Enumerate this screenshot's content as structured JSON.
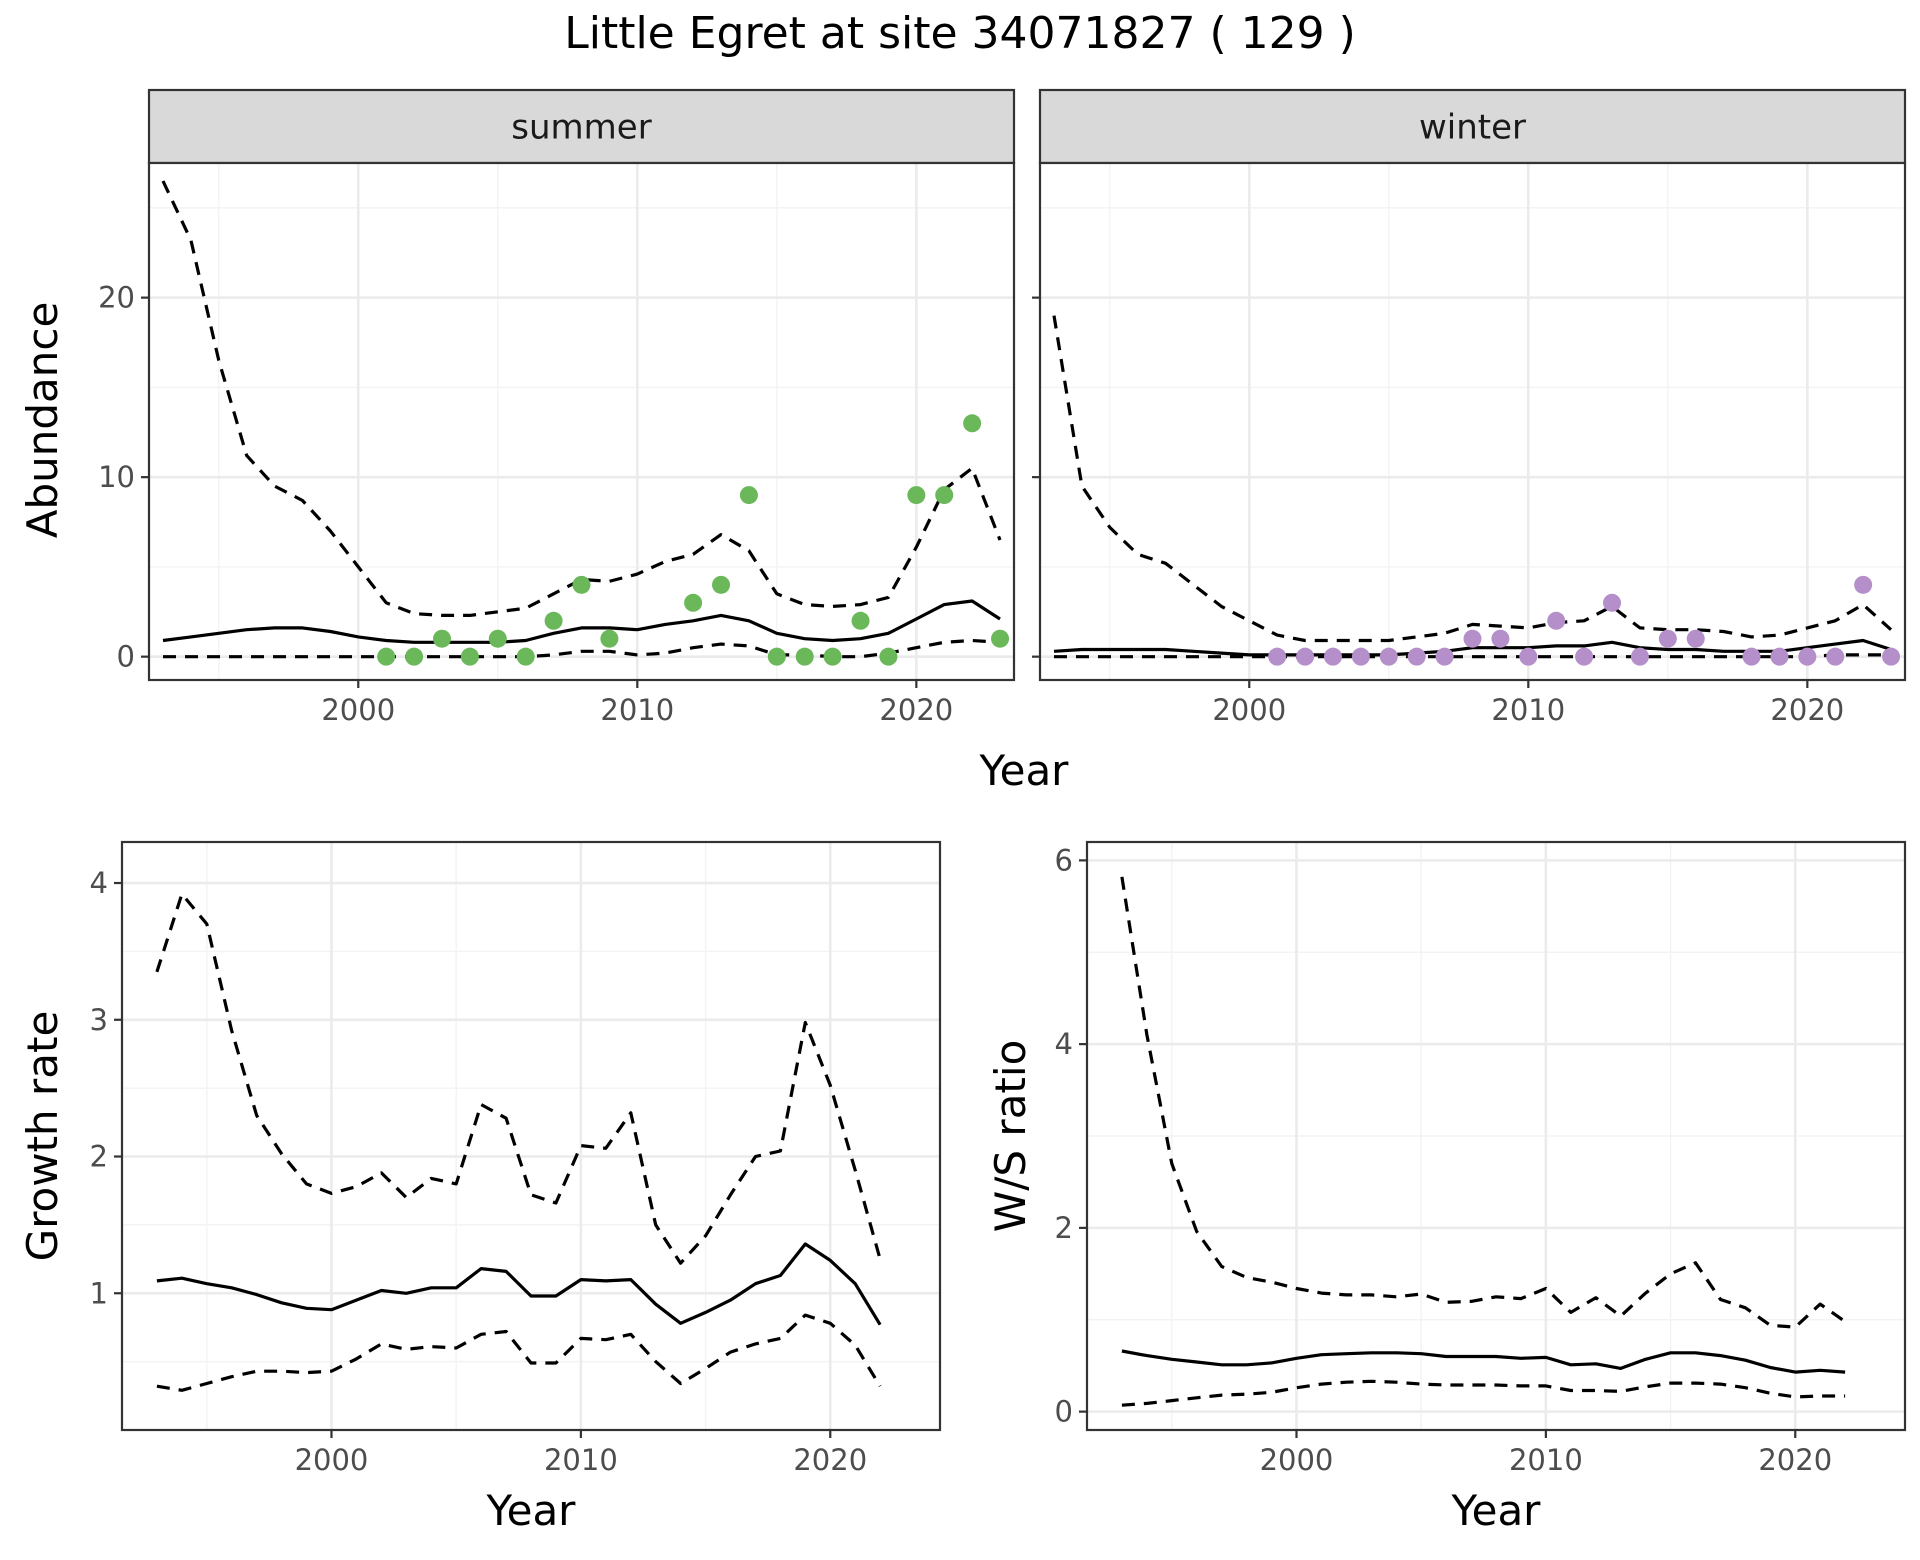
{
  "title": "Little Egret at site 34071827 ( 129 )",
  "colors": {
    "summer_points": "#6ab85a",
    "winter_points": "#b58fc9",
    "lines": "#000000",
    "strip_fill": "#d9d9d9"
  },
  "chart_data": [
    {
      "type": "line",
      "facet": "summer",
      "xlabel": "Year",
      "ylabel": "Abundance",
      "xlim": [
        1992.5,
        2023.5
      ],
      "ylim": [
        -1.3,
        27.5
      ],
      "x_ticks": [
        2000,
        2010,
        2020
      ],
      "y_ticks": [
        0,
        10,
        20
      ],
      "grid": true,
      "legend": "none",
      "series": [
        {
          "role": "estimate",
          "style": "solid",
          "x": [
            1993,
            1994,
            1995,
            1996,
            1997,
            1998,
            1999,
            2000,
            2001,
            2002,
            2003,
            2004,
            2005,
            2006,
            2007,
            2008,
            2009,
            2010,
            2011,
            2012,
            2013,
            2014,
            2015,
            2016,
            2017,
            2018,
            2019,
            2020,
            2021,
            2022,
            2023
          ],
          "y": [
            0.9,
            1.1,
            1.3,
            1.5,
            1.6,
            1.6,
            1.4,
            1.1,
            0.9,
            0.8,
            0.8,
            0.8,
            0.8,
            0.9,
            1.3,
            1.6,
            1.6,
            1.5,
            1.8,
            2.0,
            2.3,
            2.0,
            1.3,
            1.0,
            0.9,
            1.0,
            1.3,
            2.1,
            2.9,
            3.1,
            2.1
          ]
        },
        {
          "role": "upper",
          "style": "dashed",
          "x": [
            1993,
            1994,
            1995,
            1996,
            1997,
            1998,
            1999,
            2000,
            2001,
            2002,
            2003,
            2004,
            2005,
            2006,
            2007,
            2008,
            2009,
            2010,
            2011,
            2012,
            2013,
            2014,
            2015,
            2016,
            2017,
            2018,
            2019,
            2020,
            2021,
            2022,
            2023
          ],
          "y": [
            26.5,
            23.2,
            16.5,
            11.2,
            9.5,
            8.7,
            7.0,
            5.0,
            3.0,
            2.4,
            2.3,
            2.3,
            2.5,
            2.7,
            3.5,
            4.3,
            4.2,
            4.6,
            5.3,
            5.7,
            6.8,
            5.9,
            3.5,
            2.9,
            2.8,
            2.9,
            3.3,
            6.1,
            9.3,
            10.5,
            6.5
          ]
        },
        {
          "role": "lower",
          "style": "dashed",
          "x": [
            1993,
            1994,
            1995,
            1996,
            1997,
            1998,
            1999,
            2000,
            2001,
            2002,
            2003,
            2004,
            2005,
            2006,
            2007,
            2008,
            2009,
            2010,
            2011,
            2012,
            2013,
            2014,
            2015,
            2016,
            2017,
            2018,
            2019,
            2020,
            2021,
            2022,
            2023
          ],
          "y": [
            0.0,
            0.0,
            0.0,
            0.0,
            0.0,
            0.0,
            0.0,
            0.0,
            0.0,
            0.0,
            0.0,
            0.0,
            0.0,
            0.0,
            0.1,
            0.3,
            0.3,
            0.1,
            0.2,
            0.5,
            0.7,
            0.6,
            0.1,
            0.1,
            0.0,
            0.0,
            0.2,
            0.5,
            0.8,
            0.9,
            0.8
          ]
        },
        {
          "role": "observed",
          "style": "points",
          "x": [
            2001,
            2002,
            2003,
            2004,
            2005,
            2006,
            2007,
            2008,
            2009,
            2012,
            2013,
            2014,
            2015,
            2016,
            2017,
            2018,
            2019,
            2020,
            2021,
            2022,
            2023
          ],
          "y": [
            0,
            0,
            1,
            0,
            1,
            0,
            2,
            4,
            1,
            3,
            4,
            9,
            0,
            0,
            0,
            2,
            0,
            9,
            9,
            13,
            1
          ]
        }
      ]
    },
    {
      "type": "line",
      "facet": "winter",
      "xlabel": "Year",
      "ylabel": "Abundance",
      "xlim": [
        1992.5,
        2023.5
      ],
      "ylim": [
        -1.3,
        27.5
      ],
      "x_ticks": [
        2000,
        2010,
        2020
      ],
      "y_ticks": [
        0,
        10,
        20
      ],
      "grid": true,
      "legend": "none",
      "series": [
        {
          "role": "estimate",
          "style": "solid",
          "x": [
            1993,
            1994,
            1995,
            1996,
            1997,
            1998,
            1999,
            2000,
            2001,
            2002,
            2003,
            2004,
            2005,
            2006,
            2007,
            2008,
            2009,
            2010,
            2011,
            2012,
            2013,
            2014,
            2015,
            2016,
            2017,
            2018,
            2019,
            2020,
            2021,
            2022,
            2023
          ],
          "y": [
            0.3,
            0.4,
            0.4,
            0.4,
            0.4,
            0.3,
            0.2,
            0.1,
            0.1,
            0.1,
            0.1,
            0.1,
            0.1,
            0.2,
            0.3,
            0.5,
            0.5,
            0.5,
            0.6,
            0.6,
            0.8,
            0.5,
            0.4,
            0.4,
            0.3,
            0.3,
            0.3,
            0.5,
            0.7,
            0.9,
            0.4
          ]
        },
        {
          "role": "upper",
          "style": "dashed",
          "x": [
            1993,
            1994,
            1995,
            1996,
            1997,
            1998,
            1999,
            2000,
            2001,
            2002,
            2003,
            2004,
            2005,
            2006,
            2007,
            2008,
            2009,
            2010,
            2011,
            2012,
            2013,
            2014,
            2015,
            2016,
            2017,
            2018,
            2019,
            2020,
            2021,
            2022,
            2023
          ],
          "y": [
            19.0,
            9.5,
            7.2,
            5.7,
            5.2,
            4.0,
            2.8,
            2.0,
            1.2,
            0.9,
            0.9,
            0.9,
            0.9,
            1.1,
            1.3,
            1.8,
            1.7,
            1.6,
            1.9,
            2.0,
            2.8,
            1.6,
            1.5,
            1.5,
            1.4,
            1.1,
            1.2,
            1.6,
            2.0,
            2.9,
            1.5
          ]
        },
        {
          "role": "lower",
          "style": "dashed",
          "x": [
            1993,
            1994,
            1995,
            1996,
            1997,
            1998,
            1999,
            2000,
            2001,
            2002,
            2003,
            2004,
            2005,
            2006,
            2007,
            2008,
            2009,
            2010,
            2011,
            2012,
            2013,
            2014,
            2015,
            2016,
            2017,
            2018,
            2019,
            2020,
            2021,
            2022,
            2023
          ],
          "y": [
            0.0,
            0.0,
            0.0,
            0.0,
            0.0,
            0.0,
            0.0,
            0.0,
            0.0,
            0.0,
            0.0,
            0.0,
            0.0,
            0.0,
            0.0,
            0.0,
            0.0,
            0.0,
            0.0,
            0.0,
            0.0,
            0.0,
            0.0,
            0.0,
            0.0,
            0.0,
            0.0,
            0.0,
            0.1,
            0.1,
            0.1
          ]
        },
        {
          "role": "observed",
          "style": "points",
          "x": [
            2001,
            2002,
            2003,
            2004,
            2005,
            2006,
            2007,
            2008,
            2009,
            2010,
            2011,
            2012,
            2013,
            2014,
            2015,
            2016,
            2018,
            2019,
            2020,
            2021,
            2022,
            2023
          ],
          "y": [
            0,
            0,
            0,
            0,
            0,
            0,
            0,
            1,
            1,
            0,
            2,
            0,
            3,
            0,
            1,
            1,
            0,
            0,
            0,
            0,
            4,
            0
          ]
        }
      ]
    },
    {
      "type": "line",
      "xlabel": "Year",
      "ylabel": "Growth rate",
      "xlim": [
        1991.6,
        2024.4
      ],
      "ylim": [
        0.0,
        4.3
      ],
      "x_ticks": [
        2000,
        2010,
        2020
      ],
      "y_ticks": [
        1,
        2,
        3,
        4
      ],
      "grid": true,
      "legend": "none",
      "series": [
        {
          "role": "estimate",
          "style": "solid",
          "x": [
            1993,
            1994,
            1995,
            1996,
            1997,
            1998,
            1999,
            2000,
            2001,
            2002,
            2003,
            2004,
            2005,
            2006,
            2007,
            2008,
            2009,
            2010,
            2011,
            2012,
            2013,
            2014,
            2015,
            2016,
            2017,
            2018,
            2019,
            2020,
            2021,
            2022
          ],
          "y": [
            1.09,
            1.11,
            1.07,
            1.04,
            0.99,
            0.93,
            0.89,
            0.88,
            0.95,
            1.02,
            1.0,
            1.04,
            1.04,
            1.18,
            1.16,
            0.98,
            0.98,
            1.1,
            1.09,
            1.1,
            0.92,
            0.78,
            0.86,
            0.95,
            1.07,
            1.13,
            1.36,
            1.24,
            1.07,
            0.77
          ]
        },
        {
          "role": "upper",
          "style": "dashed",
          "x": [
            1993,
            1994,
            1995,
            1996,
            1997,
            1998,
            1999,
            2000,
            2001,
            2002,
            2003,
            2004,
            2005,
            2006,
            2007,
            2008,
            2009,
            2010,
            2011,
            2012,
            2013,
            2014,
            2015,
            2016,
            2017,
            2018,
            2019,
            2020,
            2021,
            2022
          ],
          "y": [
            3.35,
            3.92,
            3.7,
            2.92,
            2.3,
            2.02,
            1.8,
            1.73,
            1.78,
            1.88,
            1.7,
            1.84,
            1.8,
            2.38,
            2.28,
            1.72,
            1.66,
            2.08,
            2.06,
            2.32,
            1.5,
            1.22,
            1.42,
            1.72,
            2.0,
            2.04,
            2.98,
            2.52,
            1.9,
            1.25
          ]
        },
        {
          "role": "lower",
          "style": "dashed",
          "x": [
            1993,
            1994,
            1995,
            1996,
            1997,
            1998,
            1999,
            2000,
            2001,
            2002,
            2003,
            2004,
            2005,
            2006,
            2007,
            2008,
            2009,
            2010,
            2011,
            2012,
            2013,
            2014,
            2015,
            2016,
            2017,
            2018,
            2019,
            2020,
            2021,
            2022
          ],
          "y": [
            0.32,
            0.29,
            0.34,
            0.39,
            0.43,
            0.43,
            0.42,
            0.43,
            0.52,
            0.63,
            0.59,
            0.61,
            0.6,
            0.7,
            0.72,
            0.49,
            0.49,
            0.67,
            0.66,
            0.7,
            0.5,
            0.34,
            0.45,
            0.57,
            0.63,
            0.67,
            0.84,
            0.78,
            0.62,
            0.32
          ]
        }
      ]
    },
    {
      "type": "line",
      "xlabel": "Year",
      "ylabel": "W/S ratio",
      "xlim": [
        1991.6,
        2024.4
      ],
      "ylim": [
        -0.2,
        6.2
      ],
      "x_ticks": [
        2000,
        2010,
        2020
      ],
      "y_ticks": [
        0,
        2,
        4,
        6
      ],
      "grid": true,
      "legend": "none",
      "series": [
        {
          "role": "estimate",
          "style": "solid",
          "x": [
            1993,
            1994,
            1995,
            1996,
            1997,
            1998,
            1999,
            2000,
            2001,
            2002,
            2003,
            2004,
            2005,
            2006,
            2007,
            2008,
            2009,
            2010,
            2011,
            2012,
            2013,
            2014,
            2015,
            2016,
            2017,
            2018,
            2019,
            2020,
            2021,
            2022
          ],
          "y": [
            0.66,
            0.61,
            0.57,
            0.54,
            0.51,
            0.51,
            0.53,
            0.58,
            0.62,
            0.63,
            0.64,
            0.64,
            0.63,
            0.6,
            0.6,
            0.6,
            0.58,
            0.59,
            0.51,
            0.52,
            0.47,
            0.57,
            0.64,
            0.64,
            0.61,
            0.56,
            0.48,
            0.43,
            0.45,
            0.43
          ]
        },
        {
          "role": "upper",
          "style": "dashed",
          "x": [
            1993,
            1994,
            1995,
            1996,
            1997,
            1998,
            1999,
            2000,
            2001,
            2002,
            2003,
            2004,
            2005,
            2006,
            2007,
            2008,
            2009,
            2010,
            2011,
            2012,
            2013,
            2014,
            2015,
            2016,
            2017,
            2018,
            2019,
            2020,
            2021,
            2022
          ],
          "y": [
            5.82,
            4.1,
            2.7,
            1.96,
            1.58,
            1.46,
            1.41,
            1.34,
            1.29,
            1.27,
            1.27,
            1.25,
            1.28,
            1.19,
            1.2,
            1.25,
            1.23,
            1.34,
            1.08,
            1.24,
            1.04,
            1.29,
            1.5,
            1.62,
            1.22,
            1.13,
            0.94,
            0.92,
            1.17,
            0.98
          ]
        },
        {
          "role": "lower",
          "style": "dashed",
          "x": [
            1993,
            1994,
            1995,
            1996,
            1997,
            1998,
            1999,
            2000,
            2001,
            2002,
            2003,
            2004,
            2005,
            2006,
            2007,
            2008,
            2009,
            2010,
            2011,
            2012,
            2013,
            2014,
            2015,
            2016,
            2017,
            2018,
            2019,
            2020,
            2021,
            2022
          ],
          "y": [
            0.07,
            0.09,
            0.12,
            0.15,
            0.18,
            0.19,
            0.21,
            0.26,
            0.3,
            0.32,
            0.33,
            0.32,
            0.3,
            0.29,
            0.29,
            0.29,
            0.28,
            0.28,
            0.23,
            0.23,
            0.22,
            0.27,
            0.31,
            0.31,
            0.3,
            0.26,
            0.2,
            0.16,
            0.17,
            0.17
          ]
        }
      ]
    }
  ]
}
